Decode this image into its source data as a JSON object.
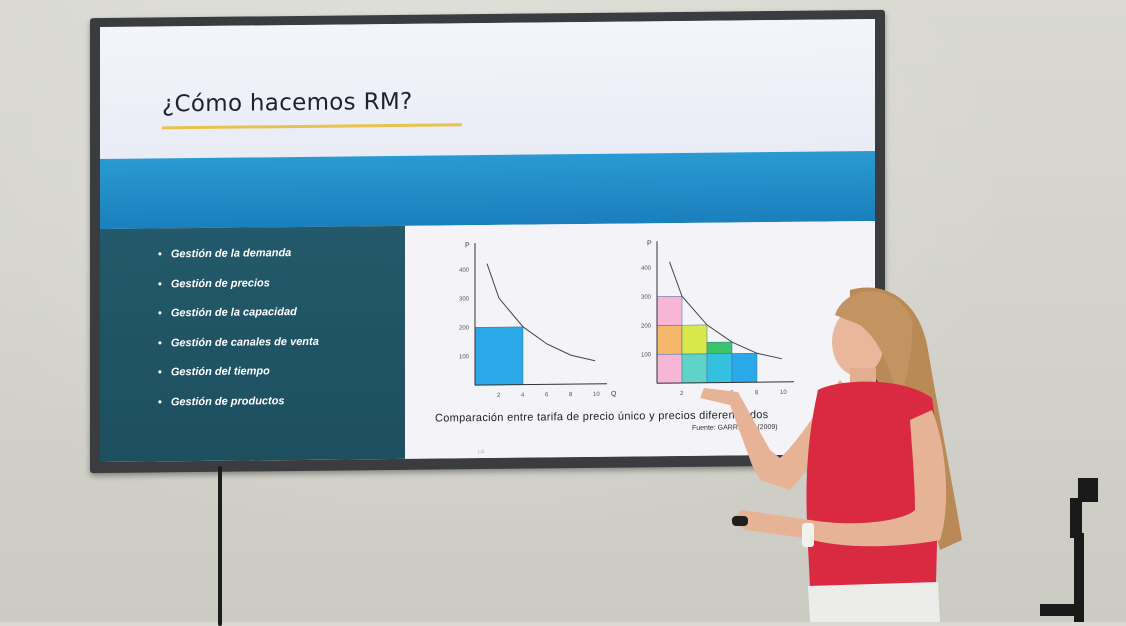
{
  "slide": {
    "title": "¿Cómo hacemos RM?",
    "bullets": [
      "Gestión de la demanda",
      "Gestión de precios",
      "Gestión de la capacidad",
      "Gestión de canales de venta",
      "Gestión del tiempo",
      "Gestión de productos"
    ],
    "caption": "Comparación entre tarifa de precio único y precios diferenciados",
    "source": "Fuente: GARRIGÓS (2009)",
    "tv_brand": "LG"
  },
  "chart_data": [
    {
      "type": "area",
      "ylabel": "P",
      "xlabel": "Q",
      "x_ticks": [
        "2",
        "4",
        "6",
        "8",
        "10"
      ],
      "y_ticks": [
        "100",
        "200",
        "300",
        "400"
      ],
      "xlim": [
        0,
        10
      ],
      "ylim": [
        0,
        450
      ],
      "demand_curve": [
        [
          1,
          420
        ],
        [
          2,
          300
        ],
        [
          4,
          200
        ],
        [
          6,
          140
        ],
        [
          8,
          100
        ],
        [
          10,
          80
        ]
      ],
      "rectangles": [
        {
          "x0": 0,
          "x1": 4,
          "y0": 0,
          "y1": 200,
          "color": "#2aa8e8"
        }
      ]
    },
    {
      "type": "area",
      "ylabel": "P",
      "xlabel": "",
      "x_ticks": [
        "2",
        "4",
        "6",
        "8",
        "10"
      ],
      "y_ticks": [
        "100",
        "200",
        "300",
        "400"
      ],
      "xlim": [
        0,
        10
      ],
      "ylim": [
        0,
        450
      ],
      "demand_curve": [
        [
          1,
          420
        ],
        [
          2,
          300
        ],
        [
          4,
          200
        ],
        [
          6,
          140
        ],
        [
          8,
          100
        ],
        [
          10,
          80
        ]
      ],
      "rectangles": [
        {
          "x0": 0,
          "x1": 2,
          "y0": 200,
          "y1": 300,
          "color": "#f7b6d6"
        },
        {
          "x0": 0,
          "x1": 2,
          "y0": 100,
          "y1": 200,
          "color": "#f5b86a"
        },
        {
          "x0": 0,
          "x1": 2,
          "y0": 0,
          "y1": 100,
          "color": "#f7b6d6"
        },
        {
          "x0": 2,
          "x1": 4,
          "y0": 100,
          "y1": 200,
          "color": "#d8e84a"
        },
        {
          "x0": 2,
          "x1": 4,
          "y0": 0,
          "y1": 100,
          "color": "#5fd3c8"
        },
        {
          "x0": 4,
          "x1": 6,
          "y0": 100,
          "y1": 140,
          "color": "#3cc46a"
        },
        {
          "x0": 4,
          "x1": 6,
          "y0": 0,
          "y1": 100,
          "color": "#36c0e0"
        },
        {
          "x0": 6,
          "x1": 8,
          "y0": 0,
          "y1": 100,
          "color": "#2aa8e8"
        }
      ]
    }
  ]
}
